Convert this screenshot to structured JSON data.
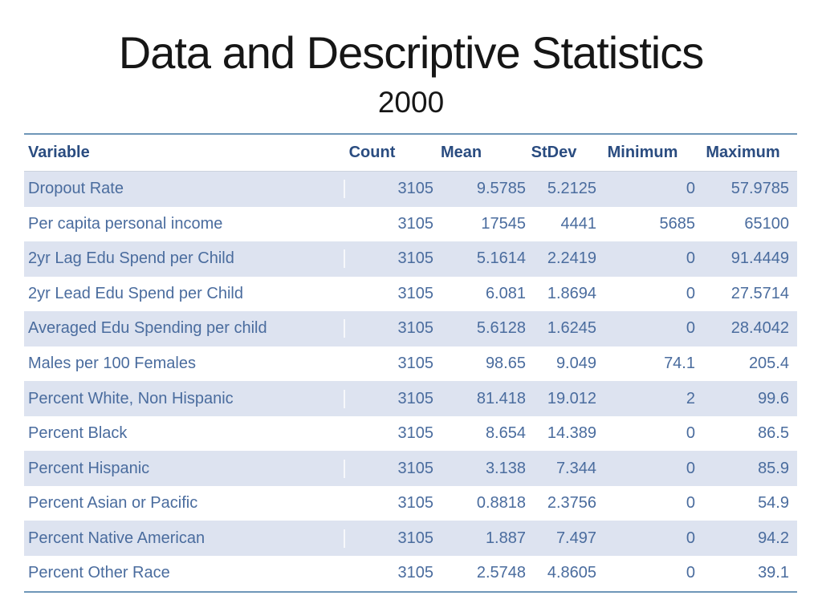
{
  "slide": {
    "title": "Data and Descriptive Statistics",
    "subtitle": "2000"
  },
  "table": {
    "columns": [
      "Variable",
      "Count",
      "Mean",
      "StDev",
      "Minimum",
      "Maximum"
    ],
    "rows": [
      [
        "Dropout Rate",
        "3105",
        "9.5785",
        "5.2125",
        "0",
        "57.9785"
      ],
      [
        "Per capita personal income",
        "3105",
        "17545",
        "4441",
        "5685",
        "65100"
      ],
      [
        "2yr Lag Edu Spend per Child",
        "3105",
        "5.1614",
        "2.2419",
        "0",
        "91.4449"
      ],
      [
        "2yr Lead Edu Spend per Child",
        "3105",
        "6.081",
        "1.8694",
        "0",
        "27.5714"
      ],
      [
        "Averaged Edu Spending per child",
        "3105",
        "5.6128",
        "1.6245",
        "0",
        "28.4042"
      ],
      [
        "Males per 100 Females",
        "3105",
        "98.65",
        "9.049",
        "74.1",
        "205.4"
      ],
      [
        "Percent White, Non Hispanic",
        "3105",
        "81.418",
        "19.012",
        "2",
        "99.6"
      ],
      [
        "Percent Black",
        "3105",
        "8.654",
        "14.389",
        "0",
        "86.5"
      ],
      [
        "Percent Hispanic",
        "3105",
        "3.138",
        "7.344",
        "0",
        "85.9"
      ],
      [
        "Percent Asian or Pacific",
        "3105",
        "0.8818",
        "2.3756",
        "0",
        "54.9"
      ],
      [
        "Percent Native American",
        "3105",
        "1.887",
        "7.497",
        "0",
        "94.2"
      ],
      [
        "Percent Other Race",
        "3105",
        "2.5748",
        "4.8605",
        "0",
        "39.1"
      ]
    ],
    "colors": {
      "header_text": "#2a4c80",
      "body_text": "#4a6c9e",
      "row_shade": "#dde3f0",
      "rule_line": "#6e96b8",
      "title_text": "#161616"
    }
  }
}
